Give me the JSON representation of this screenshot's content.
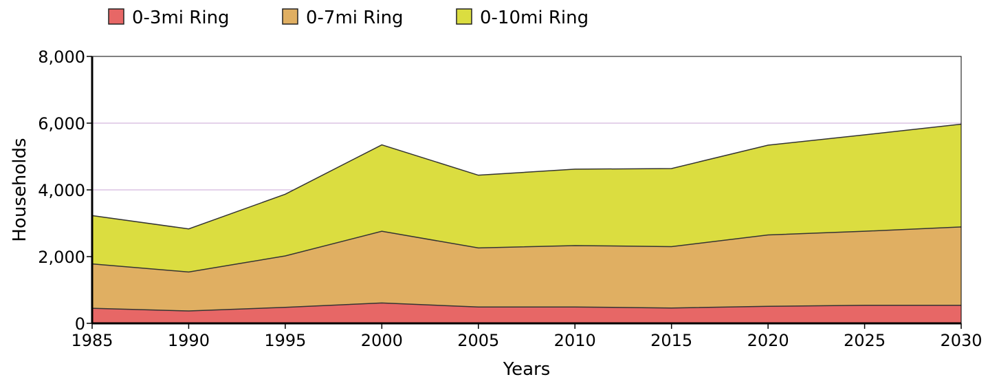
{
  "chart_data": {
    "type": "area",
    "stacked": false,
    "xlabel": "Years",
    "ylabel": "Households",
    "x": [
      1985,
      1990,
      1995,
      2000,
      2005,
      2010,
      2015,
      2020,
      2025,
      2030
    ],
    "x_ticks": [
      "1985",
      "1990",
      "1995",
      "2000",
      "2005",
      "2010",
      "2015",
      "2020",
      "2025",
      "2030"
    ],
    "ylim": [
      0,
      8000
    ],
    "y_ticks": [
      0,
      2000,
      4000,
      6000,
      8000
    ],
    "y_tick_labels": [
      "0",
      "2,000",
      "4,000",
      "6,000",
      "8,000"
    ],
    "grid": "horizontal",
    "legend_position": "top-left",
    "series": [
      {
        "name": "0-10mi Ring",
        "color": "#dbdd40",
        "values": [
          3230,
          2830,
          3870,
          5350,
          4440,
          4620,
          4640,
          5340,
          5650,
          5970
        ]
      },
      {
        "name": "0-7mi Ring",
        "color": "#e0af62",
        "values": [
          1780,
          1540,
          2020,
          2760,
          2260,
          2330,
          2300,
          2650,
          2760,
          2890
        ]
      },
      {
        "name": "0-3mi Ring",
        "color": "#e76766",
        "values": [
          450,
          370,
          480,
          610,
          490,
          490,
          460,
          510,
          540,
          540
        ]
      }
    ],
    "legend": [
      {
        "label": "0-3mi Ring",
        "color": "#e76766"
      },
      {
        "label": "0-7mi Ring",
        "color": "#e0af62"
      },
      {
        "label": "0-10mi Ring",
        "color": "#dbdd40"
      }
    ],
    "gridline_color": "#c9a6d6"
  }
}
